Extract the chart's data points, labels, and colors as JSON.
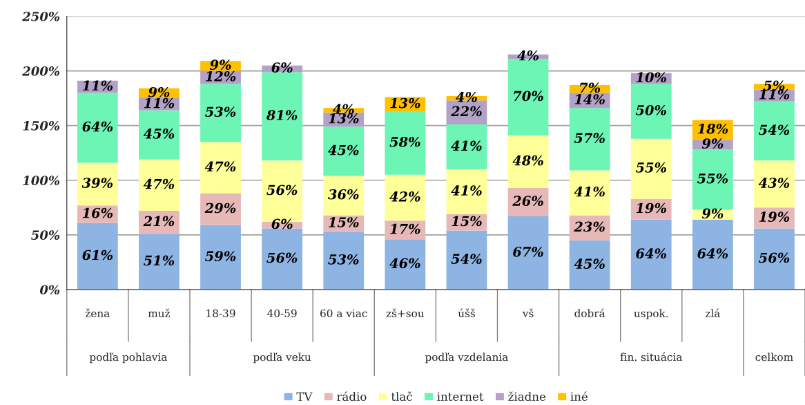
{
  "chart_data": {
    "type": "bar",
    "stacked": true,
    "categories": [
      "žena",
      "muž",
      "18-39",
      "40-59",
      "60 a viac",
      "zš+sou",
      "úšš",
      "vš",
      "dobrá",
      "uspok.",
      "zlá",
      null
    ],
    "series": [
      {
        "name": "TV",
        "color": "#8eb4e3",
        "values": [
          61,
          51,
          59,
          56,
          53,
          46,
          54,
          67,
          45,
          64,
          64,
          56
        ],
        "value_labels": [
          "61%",
          "51%",
          "59%",
          "56%",
          "53%",
          "46%",
          "54%",
          "67%",
          "45%",
          "64%",
          "64%",
          "56%"
        ]
      },
      {
        "name": "rádio",
        "color": "#e6b9b8",
        "values": [
          16,
          21,
          29,
          6,
          15,
          17,
          15,
          26,
          23,
          19,
          null,
          19
        ],
        "value_labels": [
          "16%",
          "21%",
          "29%",
          "6%",
          "15%",
          "17%",
          "15%",
          "26%",
          "23%",
          "19%",
          null,
          "19%"
        ]
      },
      {
        "name": "tlač",
        "color": "#ffff99",
        "values": [
          39,
          47,
          47,
          56,
          36,
          42,
          41,
          48,
          41,
          55,
          9,
          43
        ],
        "value_labels": [
          "39%",
          "47%",
          "47%",
          "56%",
          "36%",
          "42%",
          "41%",
          "48%",
          "41%",
          "55%",
          "9%",
          "43%"
        ]
      },
      {
        "name": "internet",
        "color": "#6cf5b4",
        "values": [
          64,
          45,
          53,
          81,
          45,
          58,
          41,
          70,
          57,
          50,
          55,
          54
        ],
        "value_labels": [
          "64%",
          "45%",
          "53%",
          "81%",
          "45%",
          "58%",
          "41%",
          "70%",
          "57%",
          "50%",
          "55%",
          "54%"
        ]
      },
      {
        "name": "žiadne",
        "color": "#b3a2c7",
        "values": [
          11,
          11,
          12,
          6,
          13,
          null,
          22,
          4,
          14,
          10,
          9,
          11
        ],
        "value_labels": [
          "11%",
          "11%",
          "12%",
          "6%",
          "13%",
          null,
          "22%",
          "4%",
          "14%",
          "10%",
          "9%",
          "11%"
        ]
      },
      {
        "name": "iné",
        "color": "#ffc000",
        "values": [
          null,
          9,
          9,
          null,
          4,
          13,
          4,
          null,
          7,
          null,
          18,
          5
        ],
        "value_labels": [
          null,
          "9%",
          "9%",
          null,
          "4%",
          "13%",
          "4%",
          null,
          "7%",
          null,
          "18%",
          "5%"
        ]
      }
    ],
    "ylim": [
      0,
      250
    ],
    "yticks": [
      {
        "value": 0,
        "label": "0%"
      },
      {
        "value": 50,
        "label": "50%"
      },
      {
        "value": 100,
        "label": "100%"
      },
      {
        "value": 150,
        "label": "150%"
      },
      {
        "value": 200,
        "label": "200%"
      },
      {
        "value": 250,
        "label": "250%"
      }
    ],
    "grid": "y",
    "legend": "bottom",
    "annotations": [
      "podľa pohlavia",
      "podľa veku",
      "podľa vzdelania",
      "fin. situácia",
      "celkom"
    ]
  }
}
